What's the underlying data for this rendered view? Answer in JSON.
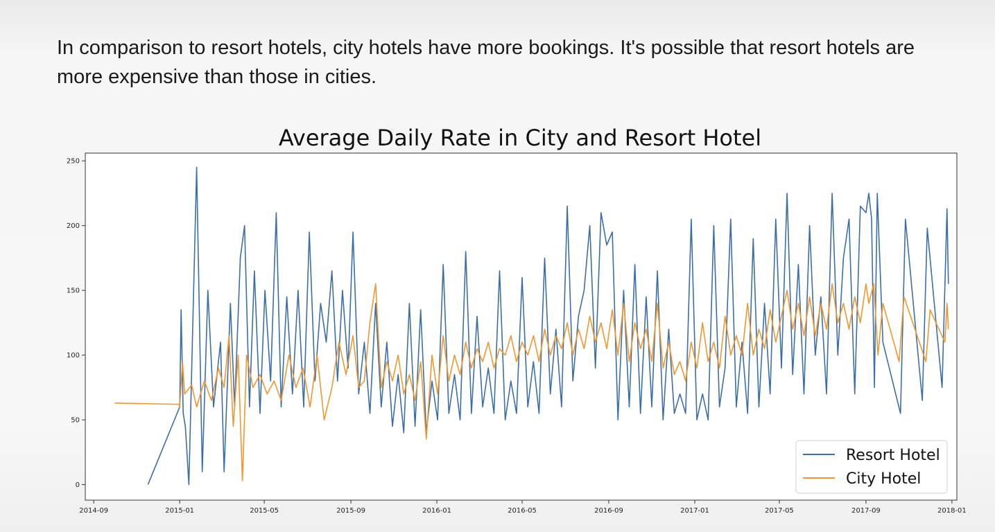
{
  "caption": "In comparison to resort hotels, city hotels have more bookings. It's possible that resort hotels are more expensive than those in cities.",
  "chart_data": {
    "type": "line",
    "title": "Average Daily Rate in City and Resort Hotel",
    "xlabel": "",
    "ylabel": "",
    "xlim": [
      "2014-08-20",
      "2018-01-08"
    ],
    "ylim": [
      -12,
      256
    ],
    "x_ticks": [
      "2014-09",
      "2015-01",
      "2015-05",
      "2015-09",
      "2016-01",
      "2016-05",
      "2016-09",
      "2017-01",
      "2017-05",
      "2017-09",
      "2018-01"
    ],
    "y_ticks": [
      0,
      50,
      100,
      150,
      200,
      250
    ],
    "legend_position": "lower-right",
    "series": [
      {
        "name": "Resort Hotel",
        "color": "#3a6ea8",
        "points": [
          [
            "2014-11-17",
            0
          ],
          [
            "2015-01-01",
            60
          ],
          [
            "2015-01-03",
            135
          ],
          [
            "2015-01-06",
            55
          ],
          [
            "2015-01-09",
            45
          ],
          [
            "2015-01-14",
            0
          ],
          [
            "2015-01-25",
            245
          ],
          [
            "2015-02-02",
            10
          ],
          [
            "2015-02-10",
            150
          ],
          [
            "2015-02-18",
            60
          ],
          [
            "2015-02-28",
            110
          ],
          [
            "2015-03-05",
            10
          ],
          [
            "2015-03-14",
            140
          ],
          [
            "2015-03-20",
            60
          ],
          [
            "2015-03-28",
            175
          ],
          [
            "2015-04-03",
            200
          ],
          [
            "2015-04-10",
            60
          ],
          [
            "2015-04-17",
            165
          ],
          [
            "2015-04-25",
            55
          ],
          [
            "2015-05-02",
            150
          ],
          [
            "2015-05-10",
            80
          ],
          [
            "2015-05-18",
            210
          ],
          [
            "2015-05-25",
            60
          ],
          [
            "2015-06-02",
            145
          ],
          [
            "2015-06-10",
            70
          ],
          [
            "2015-06-18",
            150
          ],
          [
            "2015-06-26",
            60
          ],
          [
            "2015-07-04",
            195
          ],
          [
            "2015-07-12",
            80
          ],
          [
            "2015-07-20",
            140
          ],
          [
            "2015-07-28",
            110
          ],
          [
            "2015-08-05",
            165
          ],
          [
            "2015-08-13",
            80
          ],
          [
            "2015-08-20",
            150
          ],
          [
            "2015-08-28",
            90
          ],
          [
            "2015-09-04",
            195
          ],
          [
            "2015-09-12",
            70
          ],
          [
            "2015-09-20",
            110
          ],
          [
            "2015-09-28",
            55
          ],
          [
            "2015-10-06",
            140
          ],
          [
            "2015-10-14",
            60
          ],
          [
            "2015-10-22",
            110
          ],
          [
            "2015-10-30",
            45
          ],
          [
            "2015-11-07",
            85
          ],
          [
            "2015-11-15",
            40
          ],
          [
            "2015-11-23",
            140
          ],
          [
            "2015-12-01",
            45
          ],
          [
            "2015-12-09",
            135
          ],
          [
            "2015-12-17",
            40
          ],
          [
            "2015-12-25",
            80
          ],
          [
            "2016-01-02",
            50
          ],
          [
            "2016-01-10",
            170
          ],
          [
            "2016-01-18",
            55
          ],
          [
            "2016-01-26",
            85
          ],
          [
            "2016-02-03",
            50
          ],
          [
            "2016-02-11",
            180
          ],
          [
            "2016-02-19",
            55
          ],
          [
            "2016-02-27",
            130
          ],
          [
            "2016-03-06",
            60
          ],
          [
            "2016-03-14",
            90
          ],
          [
            "2016-03-22",
            55
          ],
          [
            "2016-03-30",
            165
          ],
          [
            "2016-04-07",
            50
          ],
          [
            "2016-04-15",
            80
          ],
          [
            "2016-04-23",
            55
          ],
          [
            "2016-05-01",
            160
          ],
          [
            "2016-05-09",
            60
          ],
          [
            "2016-05-17",
            95
          ],
          [
            "2016-05-25",
            55
          ],
          [
            "2016-06-02",
            175
          ],
          [
            "2016-06-10",
            70
          ],
          [
            "2016-06-18",
            120
          ],
          [
            "2016-06-26",
            60
          ],
          [
            "2016-07-04",
            215
          ],
          [
            "2016-07-12",
            80
          ],
          [
            "2016-07-20",
            130
          ],
          [
            "2016-07-28",
            150
          ],
          [
            "2016-08-05",
            200
          ],
          [
            "2016-08-13",
            90
          ],
          [
            "2016-08-21",
            210
          ],
          [
            "2016-08-29",
            185
          ],
          [
            "2016-09-06",
            195
          ],
          [
            "2016-09-14",
            50
          ],
          [
            "2016-09-22",
            150
          ],
          [
            "2016-09-30",
            60
          ],
          [
            "2016-10-08",
            170
          ],
          [
            "2016-10-16",
            55
          ],
          [
            "2016-10-24",
            145
          ],
          [
            "2016-11-01",
            60
          ],
          [
            "2016-11-09",
            165
          ],
          [
            "2016-11-17",
            50
          ],
          [
            "2016-11-25",
            120
          ],
          [
            "2016-12-03",
            55
          ],
          [
            "2016-12-11",
            70
          ],
          [
            "2016-12-19",
            55
          ],
          [
            "2016-12-27",
            205
          ],
          [
            "2017-01-04",
            50
          ],
          [
            "2017-01-12",
            70
          ],
          [
            "2017-01-20",
            50
          ],
          [
            "2017-01-28",
            200
          ],
          [
            "2017-02-05",
            60
          ],
          [
            "2017-02-13",
            90
          ],
          [
            "2017-02-21",
            205
          ],
          [
            "2017-03-01",
            60
          ],
          [
            "2017-03-09",
            110
          ],
          [
            "2017-03-17",
            55
          ],
          [
            "2017-03-25",
            190
          ],
          [
            "2017-04-02",
            60
          ],
          [
            "2017-04-10",
            140
          ],
          [
            "2017-04-18",
            70
          ],
          [
            "2017-04-26",
            205
          ],
          [
            "2017-05-04",
            90
          ],
          [
            "2017-05-12",
            225
          ],
          [
            "2017-05-20",
            85
          ],
          [
            "2017-05-28",
            170
          ],
          [
            "2017-06-05",
            70
          ],
          [
            "2017-06-13",
            200
          ],
          [
            "2017-06-21",
            100
          ],
          [
            "2017-06-29",
            145
          ],
          [
            "2017-07-07",
            70
          ],
          [
            "2017-07-15",
            225
          ],
          [
            "2017-07-23",
            100
          ],
          [
            "2017-07-31",
            175
          ],
          [
            "2017-08-08",
            205
          ],
          [
            "2017-08-16",
            70
          ],
          [
            "2017-08-24",
            215
          ],
          [
            "2017-09-01",
            210
          ],
          [
            "2017-09-05",
            225
          ],
          [
            "2017-09-09",
            205
          ],
          [
            "2017-09-13",
            75
          ],
          [
            "2017-09-17",
            225
          ],
          [
            "2017-09-25",
            110
          ],
          [
            "2017-10-20",
            55
          ],
          [
            "2017-10-27",
            205
          ],
          [
            "2017-11-20",
            65
          ],
          [
            "2017-11-27",
            198
          ],
          [
            "2017-12-18",
            75
          ],
          [
            "2017-12-25",
            213
          ],
          [
            "2017-12-27",
            155
          ]
        ]
      },
      {
        "name": "City Hotel",
        "color": "#f0962e",
        "points": [
          [
            "2014-10-01",
            63
          ],
          [
            "2014-12-31",
            62
          ],
          [
            "2015-01-01",
            60
          ],
          [
            "2015-01-05",
            95
          ],
          [
            "2015-01-08",
            70
          ],
          [
            "2015-01-18",
            77
          ],
          [
            "2015-01-25",
            60
          ],
          [
            "2015-02-05",
            80
          ],
          [
            "2015-02-15",
            65
          ],
          [
            "2015-02-25",
            90
          ],
          [
            "2015-03-05",
            75
          ],
          [
            "2015-03-12",
            115
          ],
          [
            "2015-03-18",
            45
          ],
          [
            "2015-03-25",
            100
          ],
          [
            "2015-03-31",
            3
          ],
          [
            "2015-04-06",
            100
          ],
          [
            "2015-04-15",
            75
          ],
          [
            "2015-04-25",
            85
          ],
          [
            "2015-05-05",
            70
          ],
          [
            "2015-05-15",
            80
          ],
          [
            "2015-05-25",
            65
          ],
          [
            "2015-06-05",
            100
          ],
          [
            "2015-06-15",
            75
          ],
          [
            "2015-06-25",
            90
          ],
          [
            "2015-07-05",
            60
          ],
          [
            "2015-07-15",
            100
          ],
          [
            "2015-07-25",
            50
          ],
          [
            "2015-08-05",
            75
          ],
          [
            "2015-08-15",
            110
          ],
          [
            "2015-08-25",
            85
          ],
          [
            "2015-09-04",
            115
          ],
          [
            "2015-09-12",
            75
          ],
          [
            "2015-09-20",
            80
          ],
          [
            "2015-09-28",
            125
          ],
          [
            "2015-10-06",
            155
          ],
          [
            "2015-10-14",
            75
          ],
          [
            "2015-10-22",
            95
          ],
          [
            "2015-10-30",
            80
          ],
          [
            "2015-11-07",
            100
          ],
          [
            "2015-11-15",
            70
          ],
          [
            "2015-11-23",
            85
          ],
          [
            "2015-12-01",
            65
          ],
          [
            "2015-12-09",
            95
          ],
          [
            "2015-12-17",
            35
          ],
          [
            "2015-12-25",
            100
          ],
          [
            "2016-01-02",
            70
          ],
          [
            "2016-01-10",
            115
          ],
          [
            "2016-01-18",
            80
          ],
          [
            "2016-01-26",
            100
          ],
          [
            "2016-02-03",
            85
          ],
          [
            "2016-02-11",
            110
          ],
          [
            "2016-02-19",
            90
          ],
          [
            "2016-02-27",
            105
          ],
          [
            "2016-03-06",
            95
          ],
          [
            "2016-03-14",
            110
          ],
          [
            "2016-03-22",
            90
          ],
          [
            "2016-03-30",
            105
          ],
          [
            "2016-04-07",
            100
          ],
          [
            "2016-04-15",
            115
          ],
          [
            "2016-04-23",
            95
          ],
          [
            "2016-05-01",
            110
          ],
          [
            "2016-05-09",
            100
          ],
          [
            "2016-05-17",
            115
          ],
          [
            "2016-05-25",
            95
          ],
          [
            "2016-06-02",
            120
          ],
          [
            "2016-06-10",
            100
          ],
          [
            "2016-06-18",
            115
          ],
          [
            "2016-06-26",
            105
          ],
          [
            "2016-07-04",
            125
          ],
          [
            "2016-07-12",
            100
          ],
          [
            "2016-07-20",
            120
          ],
          [
            "2016-07-28",
            105
          ],
          [
            "2016-08-05",
            130
          ],
          [
            "2016-08-13",
            110
          ],
          [
            "2016-08-21",
            125
          ],
          [
            "2016-08-29",
            105
          ],
          [
            "2016-09-06",
            135
          ],
          [
            "2016-09-14",
            100
          ],
          [
            "2016-09-22",
            140
          ],
          [
            "2016-09-30",
            95
          ],
          [
            "2016-10-08",
            125
          ],
          [
            "2016-10-16",
            105
          ],
          [
            "2016-10-24",
            120
          ],
          [
            "2016-11-01",
            95
          ],
          [
            "2016-11-09",
            140
          ],
          [
            "2016-11-17",
            90
          ],
          [
            "2016-11-25",
            110
          ],
          [
            "2016-12-03",
            85
          ],
          [
            "2016-12-11",
            95
          ],
          [
            "2016-12-19",
            80
          ],
          [
            "2016-12-27",
            110
          ],
          [
            "2017-01-04",
            90
          ],
          [
            "2017-01-12",
            125
          ],
          [
            "2017-01-20",
            95
          ],
          [
            "2017-01-28",
            110
          ],
          [
            "2017-02-05",
            90
          ],
          [
            "2017-02-13",
            130
          ],
          [
            "2017-02-21",
            100
          ],
          [
            "2017-03-01",
            115
          ],
          [
            "2017-03-09",
            100
          ],
          [
            "2017-03-17",
            140
          ],
          [
            "2017-03-25",
            100
          ],
          [
            "2017-04-02",
            120
          ],
          [
            "2017-04-10",
            105
          ],
          [
            "2017-04-18",
            135
          ],
          [
            "2017-04-26",
            110
          ],
          [
            "2017-05-04",
            130
          ],
          [
            "2017-05-12",
            150
          ],
          [
            "2017-05-20",
            120
          ],
          [
            "2017-05-28",
            140
          ],
          [
            "2017-06-05",
            115
          ],
          [
            "2017-06-13",
            145
          ],
          [
            "2017-06-21",
            115
          ],
          [
            "2017-06-29",
            140
          ],
          [
            "2017-07-07",
            120
          ],
          [
            "2017-07-15",
            155
          ],
          [
            "2017-07-23",
            125
          ],
          [
            "2017-07-31",
            140
          ],
          [
            "2017-08-08",
            120
          ],
          [
            "2017-08-16",
            145
          ],
          [
            "2017-08-24",
            125
          ],
          [
            "2017-09-01",
            155
          ],
          [
            "2017-09-05",
            140
          ],
          [
            "2017-09-12",
            155
          ],
          [
            "2017-09-18",
            100
          ],
          [
            "2017-09-25",
            140
          ],
          [
            "2017-10-18",
            95
          ],
          [
            "2017-10-25",
            145
          ],
          [
            "2017-11-25",
            95
          ],
          [
            "2017-12-01",
            135
          ],
          [
            "2017-12-22",
            110
          ],
          [
            "2017-12-25",
            140
          ],
          [
            "2017-12-27",
            120
          ]
        ]
      }
    ]
  }
}
